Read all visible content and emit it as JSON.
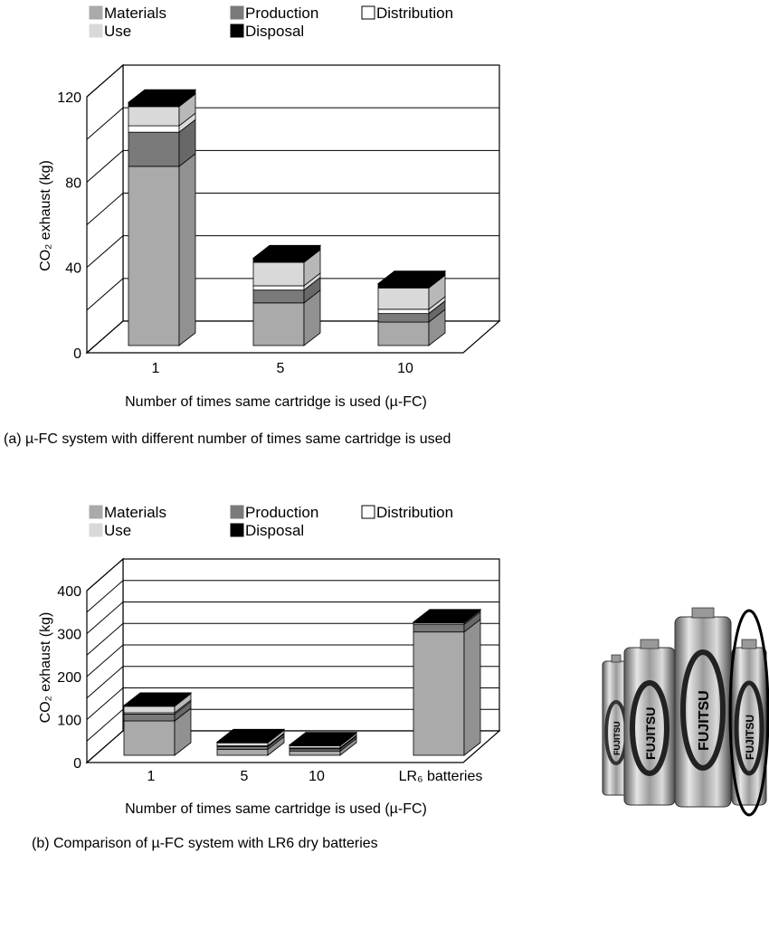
{
  "colors": {
    "Materials": "#aaaaaa",
    "Production": "#7a7a7a",
    "Distribution": "#ffffff",
    "Use": "#d9d9d9",
    "Disposal": "#000000"
  },
  "chart_data": [
    {
      "type": "bar",
      "stacked": true,
      "three_d": true,
      "caption": "(a) µ-FC system with different number of times same cartridge is used",
      "xlabel": "Number of times same cartridge is used (µ-FC)",
      "ylabel": "CO₂ exhaust (kg)",
      "ylim": [
        0,
        120
      ],
      "yticks": [
        "0",
        "40",
        "80",
        "120"
      ],
      "legend_position": "top",
      "categories": [
        "1",
        "5",
        "10"
      ],
      "series": [
        {
          "name": "Materials",
          "values": [
            84,
            20,
            11
          ]
        },
        {
          "name": "Production",
          "values": [
            16,
            6,
            4
          ]
        },
        {
          "name": "Distribution",
          "values": [
            3,
            2,
            2
          ]
        },
        {
          "name": "Use",
          "values": [
            9,
            11,
            10
          ]
        },
        {
          "name": "Disposal",
          "values": [
            2,
            2,
            2
          ]
        }
      ]
    },
    {
      "type": "bar",
      "stacked": true,
      "three_d": true,
      "caption": "(b) Comparison  of µ-FC system with LR6 dry batteries",
      "xlabel": "Number of times same cartridge is used (µ-FC)",
      "ylabel": "CO₂ exhaust (kg)",
      "ylim": [
        0,
        400
      ],
      "yticks": [
        "0",
        "100",
        "200",
        "300",
        "400"
      ],
      "legend_position": "top",
      "categories": [
        "1",
        "5",
        "10",
        "LR₆ batteries"
      ],
      "series": [
        {
          "name": "Materials",
          "values": [
            80,
            14,
            10,
            287
          ]
        },
        {
          "name": "Production",
          "values": [
            16,
            6,
            5,
            18
          ]
        },
        {
          "name": "Distribution",
          "values": [
            3,
            2,
            2,
            3
          ]
        },
        {
          "name": "Use",
          "values": [
            15,
            7,
            5,
            0
          ]
        },
        {
          "name": "Disposal",
          "values": [
            2,
            2,
            2,
            2
          ]
        }
      ]
    }
  ],
  "photo": {
    "icon": "batteries-photo-icon",
    "brand": "FUJITSU"
  }
}
